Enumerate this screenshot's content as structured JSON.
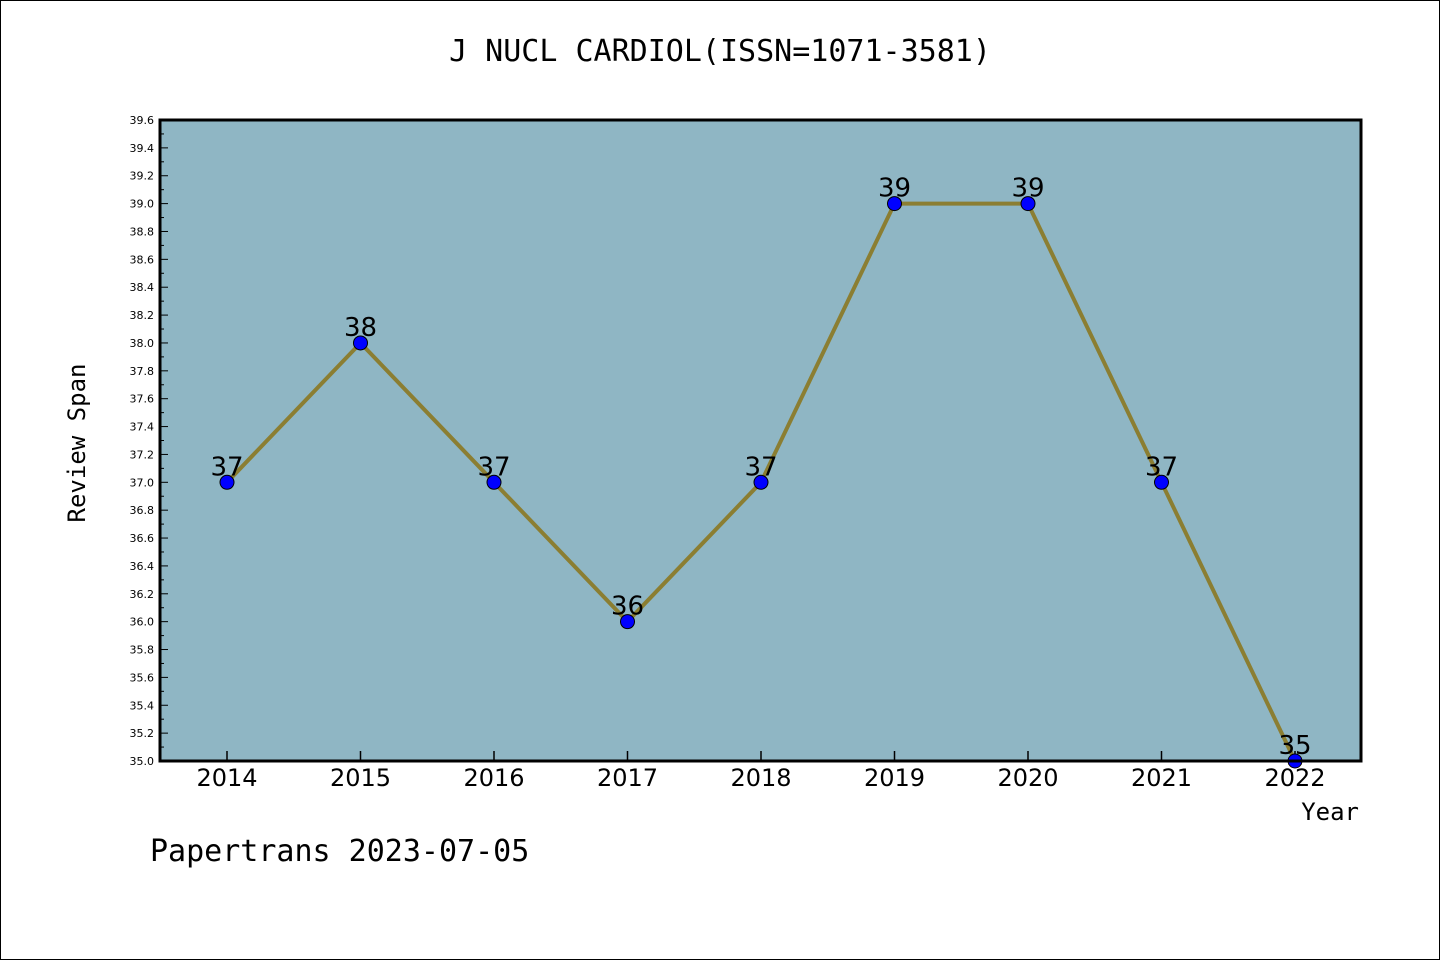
{
  "chart_data": {
    "type": "line",
    "title": "J NUCL CARDIOL(ISSN=1071-3581)",
    "xlabel": "Year",
    "ylabel": "Review Span",
    "categories": [
      "2014",
      "2015",
      "2016",
      "2017",
      "2018",
      "2019",
      "2020",
      "2021",
      "2022"
    ],
    "series": [
      {
        "values": [
          37,
          38,
          37,
          36,
          37,
          39,
          39,
          37,
          35
        ]
      }
    ],
    "data_labels": [
      "37",
      "38",
      "37",
      "36",
      "37",
      "39",
      "39",
      "37",
      "35"
    ],
    "ylim": [
      35.0,
      39.6
    ],
    "y_ticks": [
      "35.0",
      "35.2",
      "35.4",
      "35.6",
      "35.8",
      "36.0",
      "36.2",
      "36.4",
      "36.6",
      "36.8",
      "37.0",
      "37.2",
      "37.4",
      "37.6",
      "37.8",
      "38.0",
      "38.2",
      "38.4",
      "38.6",
      "38.8",
      "39.0",
      "39.2",
      "39.4",
      "39.6"
    ],
    "grid": false,
    "legend": "none",
    "colors": {
      "plot_background": "#8fb6c4",
      "line": "#8b7e32",
      "marker": "#0000ff",
      "axes": "#000000"
    }
  },
  "footer": "Papertrans 2023-07-05"
}
